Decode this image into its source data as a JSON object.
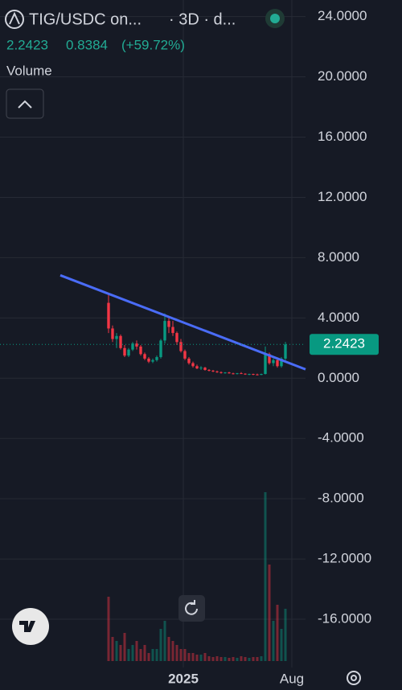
{
  "chart_data": {
    "type": "candlestick",
    "title": "TIG/USDC on...",
    "subtitle": "· 3D · d...",
    "last_price": "2.2423",
    "change": "0.8384",
    "change_pct": "(+59.72%)",
    "volume_label": "Volume",
    "price_tag": "2.2423",
    "price_line": 2.2423,
    "open": [
      5.0,
      3.3,
      2.6,
      2.8,
      2.0,
      1.5,
      1.9,
      2.3,
      2.1,
      1.6,
      1.3,
      1.1,
      1.2,
      1.4,
      2.5,
      3.8,
      3.4,
      3.0,
      2.4,
      1.8,
      1.3,
      1.0,
      0.8,
      0.65,
      0.7,
      0.55,
      0.5,
      0.45,
      0.4,
      0.35,
      0.38,
      0.32,
      0.3,
      0.33,
      0.3,
      0.25,
      0.28,
      0.25,
      0.22,
      0.28,
      1.6,
      1.0,
      1.2,
      0.8,
      1.3
    ],
    "high": [
      5.6,
      3.5,
      3.0,
      2.9,
      2.2,
      2.0,
      2.4,
      2.5,
      2.2,
      1.7,
      1.4,
      1.3,
      1.5,
      2.6,
      4.3,
      4.0,
      3.8,
      3.1,
      2.6,
      1.9,
      1.4,
      1.1,
      0.9,
      0.8,
      0.75,
      0.6,
      0.55,
      0.5,
      0.45,
      0.4,
      0.42,
      0.36,
      0.35,
      0.4,
      0.32,
      0.3,
      0.3,
      0.3,
      0.3,
      2.1,
      1.7,
      1.3,
      1.3,
      1.4,
      2.4
    ],
    "low": [
      3.0,
      2.4,
      2.0,
      1.9,
      1.4,
      1.4,
      1.8,
      1.9,
      1.5,
      1.2,
      1.0,
      1.0,
      1.1,
      1.3,
      2.3,
      3.0,
      2.8,
      2.2,
      1.7,
      1.2,
      0.9,
      0.7,
      0.6,
      0.55,
      0.5,
      0.45,
      0.4,
      0.35,
      0.3,
      0.3,
      0.3,
      0.25,
      0.25,
      0.28,
      0.22,
      0.2,
      0.2,
      0.18,
      0.2,
      0.25,
      0.9,
      0.8,
      0.7,
      0.7,
      1.2
    ],
    "close": [
      3.3,
      2.6,
      2.8,
      2.0,
      1.5,
      1.9,
      2.3,
      2.1,
      1.6,
      1.3,
      1.1,
      1.2,
      1.4,
      2.5,
      3.8,
      3.4,
      3.0,
      2.4,
      1.8,
      1.3,
      1.0,
      0.8,
      0.65,
      0.7,
      0.55,
      0.5,
      0.45,
      0.4,
      0.35,
      0.38,
      0.32,
      0.3,
      0.33,
      0.3,
      0.25,
      0.28,
      0.25,
      0.22,
      0.28,
      1.6,
      1.0,
      1.2,
      0.8,
      1.3,
      2.2423
    ],
    "volume": [
      80,
      30,
      25,
      20,
      35,
      15,
      20,
      25,
      15,
      20,
      10,
      15,
      15,
      40,
      50,
      30,
      25,
      20,
      15,
      15,
      10,
      10,
      8,
      8,
      10,
      6,
      5,
      6,
      5,
      5,
      4,
      5,
      4,
      6,
      5,
      4,
      5,
      5,
      6,
      210,
      120,
      50,
      70,
      40,
      65
    ],
    "up_color": "#089981",
    "down_color": "#f23645",
    "trendline": {
      "x": [
        -12,
        49
      ],
      "y": [
        6.83,
        0.59
      ],
      "color": "#4a6cf7"
    },
    "xlim": [
      -27,
      49
    ],
    "xticks": [
      {
        "value": 18.6,
        "label": "2025"
      },
      {
        "value": 45.6,
        "label": "Aug"
      }
    ],
    "ylim": [
      -19.2,
      25.1
    ],
    "yticks": [
      {
        "value": 24,
        "label": "24.0000"
      },
      {
        "value": 20,
        "label": "20.0000"
      },
      {
        "value": 16,
        "label": "16.0000"
      },
      {
        "value": 12,
        "label": "12.0000"
      },
      {
        "value": 8,
        "label": "8.0000"
      },
      {
        "value": 4,
        "label": "4.0000"
      },
      {
        "value": 0,
        "label": "0.0000"
      },
      {
        "value": -4,
        "label": "-4.0000"
      },
      {
        "value": -8,
        "label": "-8.0000"
      },
      {
        "value": -12,
        "label": "-12.0000"
      },
      {
        "value": -16,
        "label": "-16.0000"
      }
    ],
    "grid": true
  }
}
